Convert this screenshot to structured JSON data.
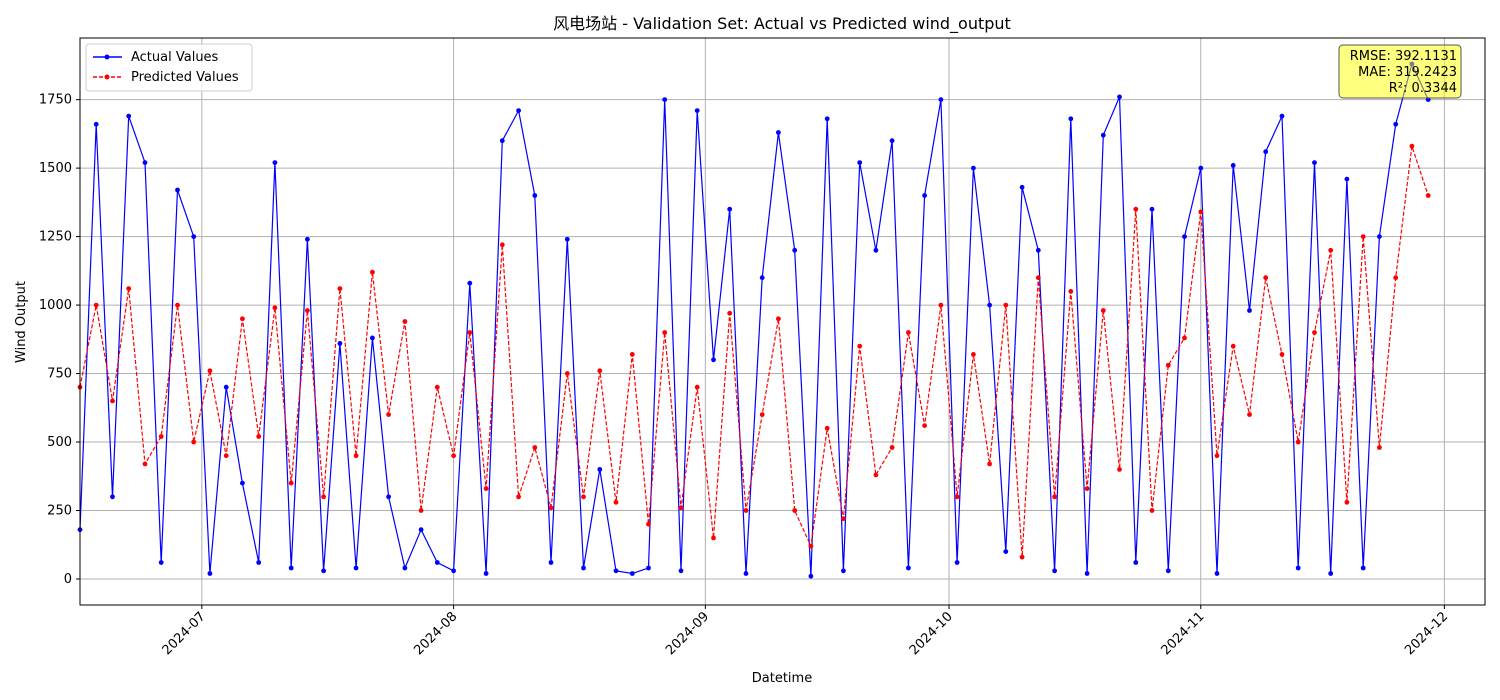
{
  "chart_data": {
    "type": "line",
    "title": "风电场站 - Validation Set: Actual vs Predicted wind_output",
    "xlabel": "Datetime",
    "ylabel": "Wind Output",
    "x_range": [
      "2024-06-16",
      "2024-12-06"
    ],
    "ylim": [
      -95,
      1975
    ],
    "x_ticks": [
      "2024-07",
      "2024-08",
      "2024-09",
      "2024-10",
      "2024-11",
      "2024-12"
    ],
    "y_ticks": [
      0,
      250,
      500,
      750,
      1000,
      1250,
      1500,
      1750
    ],
    "grid": true,
    "legend_position": "top-left",
    "metrics_position": "top-right",
    "metrics": [
      {
        "label": "RMSE",
        "value": "392.1131"
      },
      {
        "label": "MAE",
        "value": "319.2423"
      },
      {
        "label": "R²",
        "value": "0.3344"
      }
    ],
    "series": [
      {
        "name": "Actual Values",
        "color": "#0000ff",
        "line_style": "solid",
        "marker": "circle",
        "x": [
          "2024-06-16",
          "2024-06-18",
          "2024-06-20",
          "2024-06-22",
          "2024-06-24",
          "2024-06-26",
          "2024-06-28",
          "2024-06-30",
          "2024-07-02",
          "2024-07-04",
          "2024-07-06",
          "2024-07-08",
          "2024-07-10",
          "2024-07-12",
          "2024-07-14",
          "2024-07-16",
          "2024-07-18",
          "2024-07-20",
          "2024-07-22",
          "2024-07-24",
          "2024-07-26",
          "2024-07-28",
          "2024-07-30",
          "2024-08-01",
          "2024-08-03",
          "2024-08-05",
          "2024-08-07",
          "2024-08-09",
          "2024-08-11",
          "2024-08-13",
          "2024-08-15",
          "2024-08-17",
          "2024-08-19",
          "2024-08-21",
          "2024-08-23",
          "2024-08-25",
          "2024-08-27",
          "2024-08-29",
          "2024-08-31",
          "2024-09-02",
          "2024-09-04",
          "2024-09-06",
          "2024-09-08",
          "2024-09-10",
          "2024-09-12",
          "2024-09-14",
          "2024-09-16",
          "2024-09-18",
          "2024-09-20",
          "2024-09-22",
          "2024-09-24",
          "2024-09-26",
          "2024-09-28",
          "2024-09-30",
          "2024-10-02",
          "2024-10-04",
          "2024-10-06",
          "2024-10-08",
          "2024-10-10",
          "2024-10-12",
          "2024-10-14",
          "2024-10-16",
          "2024-10-18",
          "2024-10-20",
          "2024-10-22",
          "2024-10-24",
          "2024-10-26",
          "2024-10-28",
          "2024-10-30",
          "2024-11-01",
          "2024-11-03",
          "2024-11-05",
          "2024-11-07",
          "2024-11-09",
          "2024-11-11",
          "2024-11-13",
          "2024-11-15",
          "2024-11-17",
          "2024-11-19",
          "2024-11-21",
          "2024-11-23",
          "2024-11-25",
          "2024-11-27",
          "2024-11-29"
        ],
        "values": [
          180,
          1660,
          300,
          1690,
          1520,
          60,
          1420,
          1250,
          20,
          700,
          350,
          60,
          1520,
          40,
          1240,
          30,
          860,
          40,
          880,
          300,
          40,
          180,
          60,
          30,
          1080,
          20,
          1600,
          1710,
          1400,
          60,
          1240,
          40,
          400,
          30,
          20,
          40,
          1750,
          30,
          1710,
          800,
          1350,
          20,
          1100,
          1630,
          1200,
          10,
          1680,
          30,
          1520,
          1200,
          1600,
          40,
          1400,
          1750,
          60,
          1500,
          1000,
          100,
          1430,
          1200,
          30,
          1680,
          20,
          1620,
          1760,
          60,
          1350,
          30,
          1250,
          1500,
          20,
          1510,
          980,
          1560,
          1690,
          40,
          1520,
          20,
          1460,
          40,
          1250,
          1660,
          1880,
          1750
        ]
      },
      {
        "name": "Predicted Values",
        "color": "#ff0000",
        "line_style": "dashed",
        "marker": "circle",
        "x": [
          "2024-06-16",
          "2024-06-18",
          "2024-06-20",
          "2024-06-22",
          "2024-06-24",
          "2024-06-26",
          "2024-06-28",
          "2024-06-30",
          "2024-07-02",
          "2024-07-04",
          "2024-07-06",
          "2024-07-08",
          "2024-07-10",
          "2024-07-12",
          "2024-07-14",
          "2024-07-16",
          "2024-07-18",
          "2024-07-20",
          "2024-07-22",
          "2024-07-24",
          "2024-07-26",
          "2024-07-28",
          "2024-07-30",
          "2024-08-01",
          "2024-08-03",
          "2024-08-05",
          "2024-08-07",
          "2024-08-09",
          "2024-08-11",
          "2024-08-13",
          "2024-08-15",
          "2024-08-17",
          "2024-08-19",
          "2024-08-21",
          "2024-08-23",
          "2024-08-25",
          "2024-08-27",
          "2024-08-29",
          "2024-08-31",
          "2024-09-02",
          "2024-09-04",
          "2024-09-06",
          "2024-09-08",
          "2024-09-10",
          "2024-09-12",
          "2024-09-14",
          "2024-09-16",
          "2024-09-18",
          "2024-09-20",
          "2024-09-22",
          "2024-09-24",
          "2024-09-26",
          "2024-09-28",
          "2024-09-30",
          "2024-10-02",
          "2024-10-04",
          "2024-10-06",
          "2024-10-08",
          "2024-10-10",
          "2024-10-12",
          "2024-10-14",
          "2024-10-16",
          "2024-10-18",
          "2024-10-20",
          "2024-10-22",
          "2024-10-24",
          "2024-10-26",
          "2024-10-28",
          "2024-10-30",
          "2024-11-01",
          "2024-11-03",
          "2024-11-05",
          "2024-11-07",
          "2024-11-09",
          "2024-11-11",
          "2024-11-13",
          "2024-11-15",
          "2024-11-17",
          "2024-11-19",
          "2024-11-21",
          "2024-11-23",
          "2024-11-25",
          "2024-11-27",
          "2024-11-29"
        ],
        "values": [
          700,
          1000,
          650,
          1060,
          420,
          520,
          1000,
          500,
          760,
          450,
          950,
          520,
          990,
          350,
          980,
          300,
          1060,
          450,
          1120,
          600,
          940,
          250,
          700,
          450,
          900,
          330,
          1220,
          300,
          480,
          260,
          750,
          300,
          760,
          280,
          820,
          200,
          900,
          260,
          700,
          150,
          970,
          250,
          600,
          950,
          250,
          120,
          550,
          220,
          850,
          380,
          480,
          900,
          560,
          1000,
          300,
          820,
          420,
          1000,
          80,
          1100,
          300,
          1050,
          330,
          980,
          400,
          1350,
          250,
          780,
          880,
          1340,
          450,
          850,
          600,
          1100,
          820,
          500,
          900,
          1200,
          280,
          1250,
          480,
          1100,
          1580,
          1400
        ]
      }
    ]
  }
}
